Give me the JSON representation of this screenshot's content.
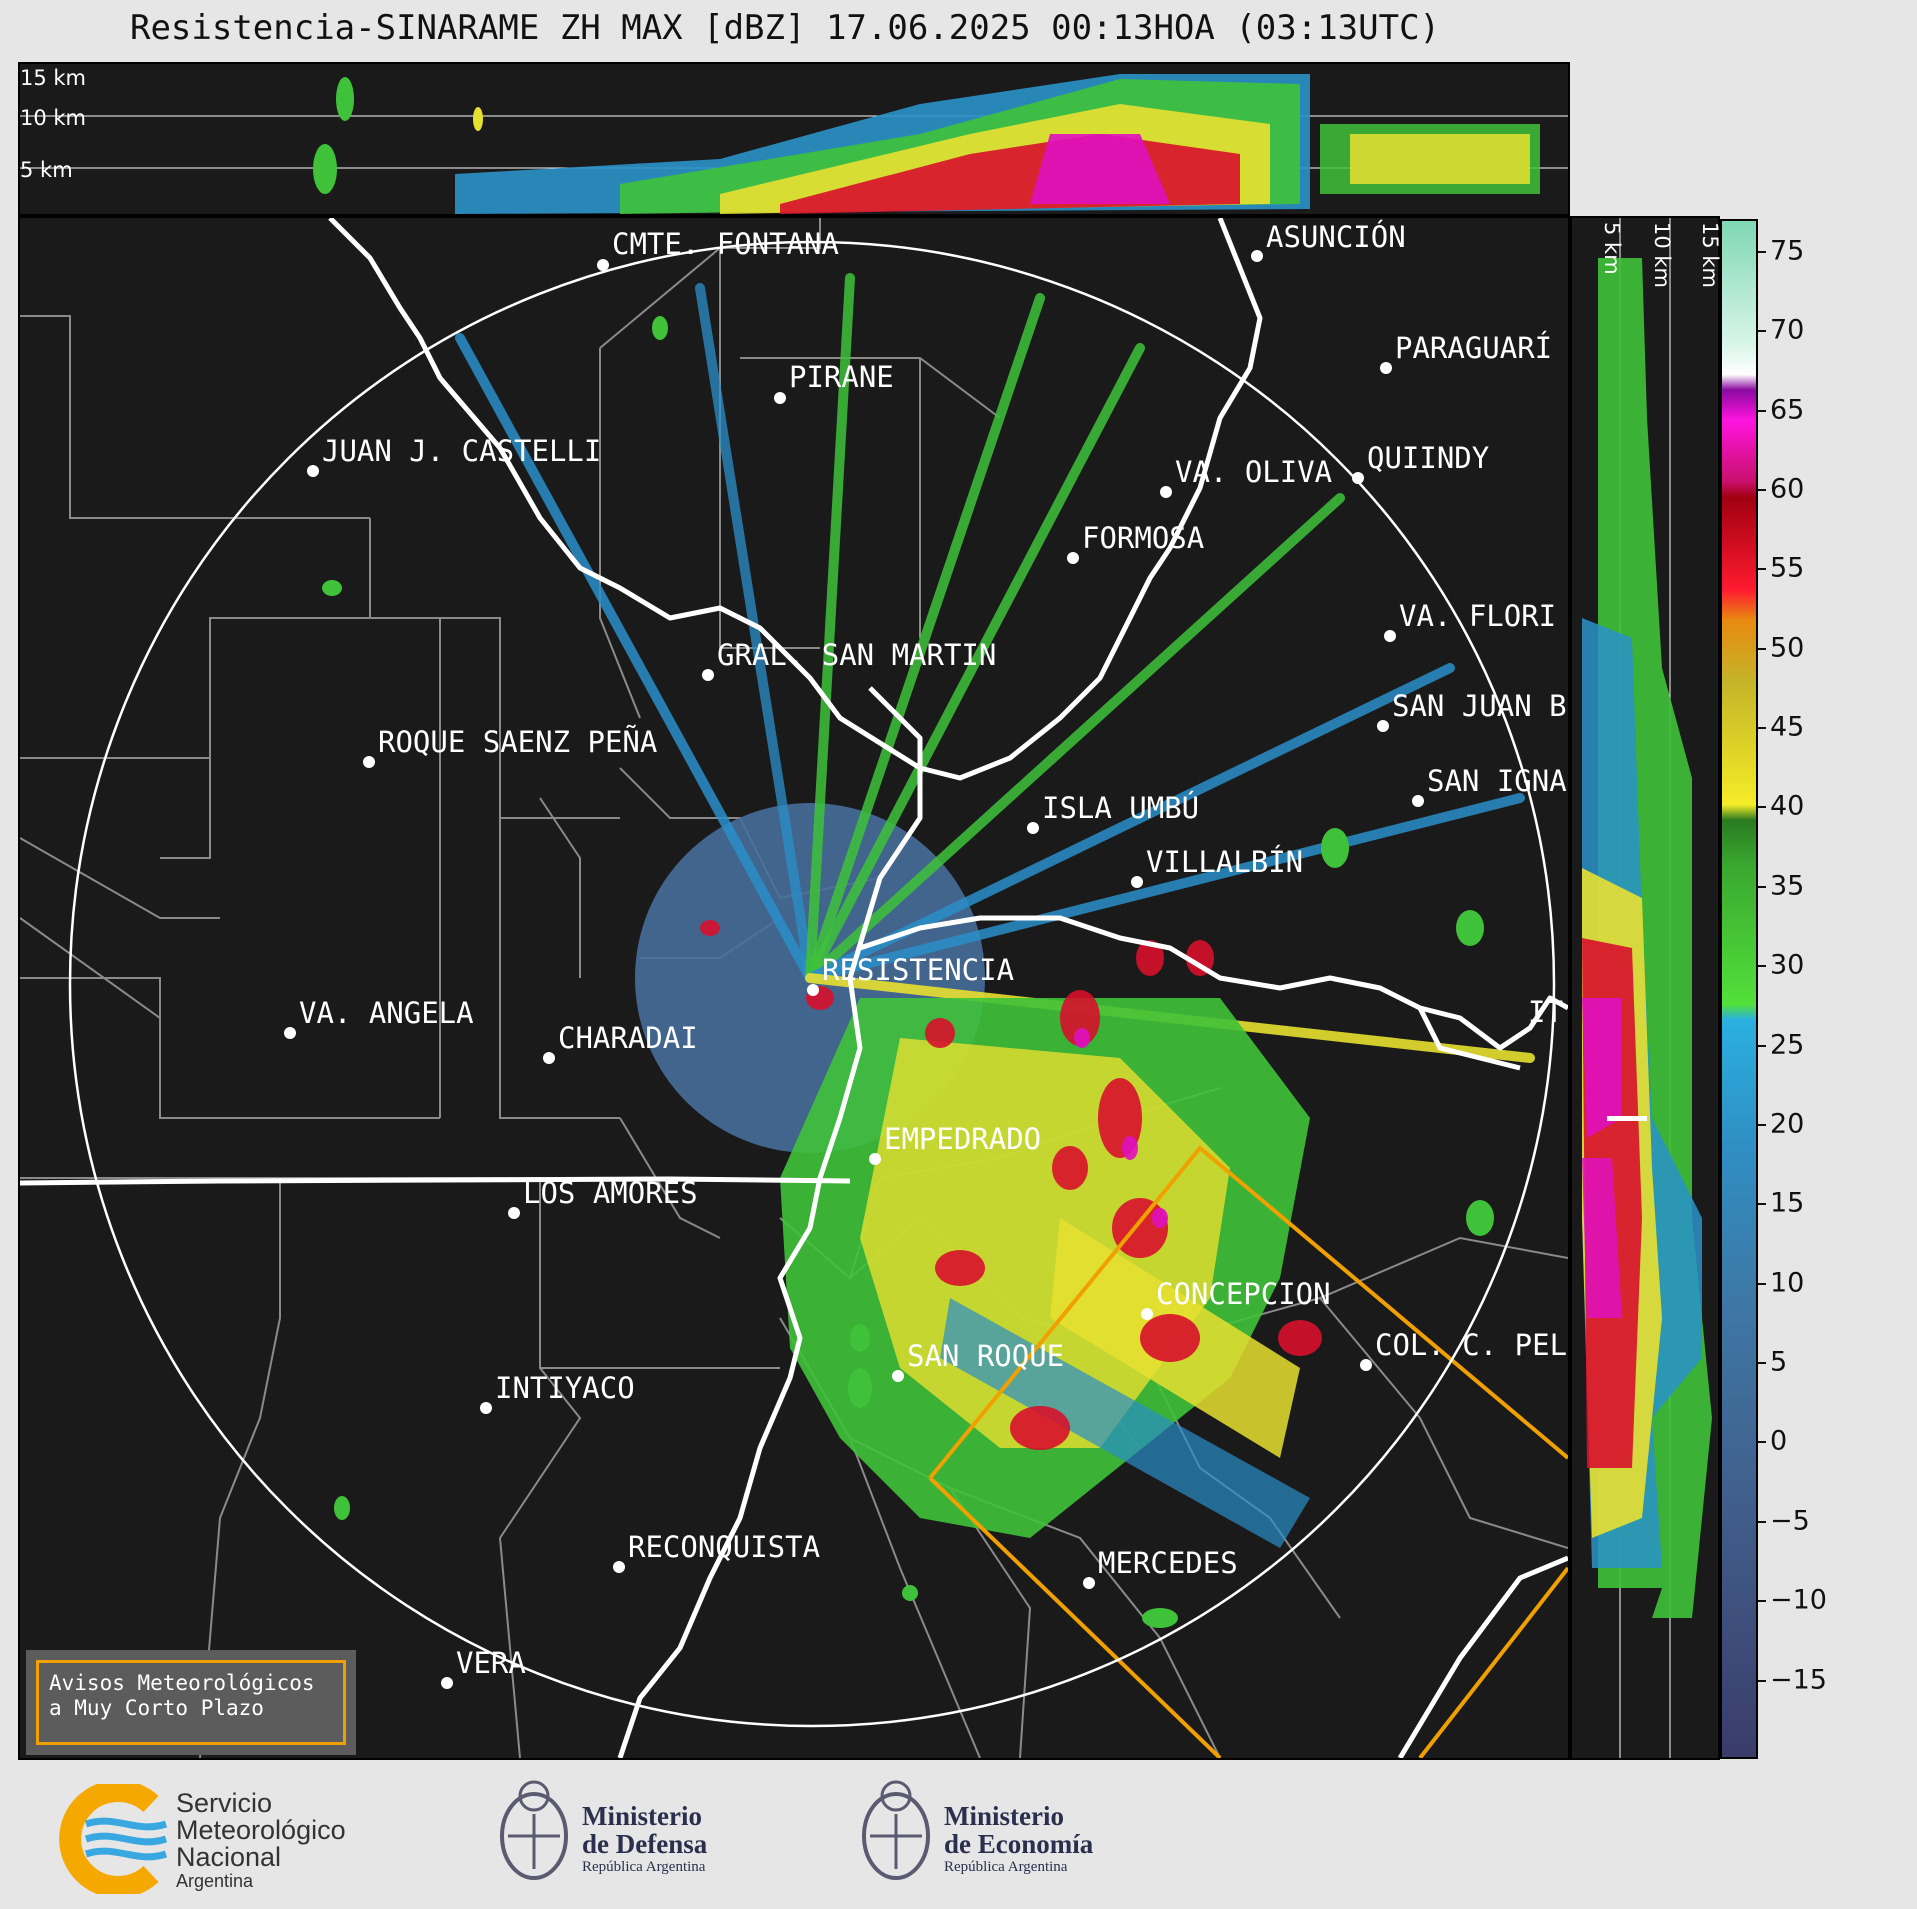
{
  "title": "Resistencia-SINARAME ZH MAX [dBZ] 17.06.2025 00:13HOA (03:13UTC)",
  "top_section": {
    "altitude_labels": [
      "15 km",
      "10 km",
      "5 km"
    ]
  },
  "right_section": {
    "altitude_labels": [
      "5 km",
      "10 km",
      "15 km"
    ]
  },
  "cities": [
    {
      "name": "CMTE. FONTANA"
    },
    {
      "name": "ASUNCIÓN"
    },
    {
      "name": "PIRANE"
    },
    {
      "name": "PARAGUARÍ"
    },
    {
      "name": "JUAN J. CASTELLI"
    },
    {
      "name": "VA. OLIVA"
    },
    {
      "name": "QUIINDY"
    },
    {
      "name": "FORMOSA"
    },
    {
      "name": "VA. FLORI"
    },
    {
      "name": "GRAL. SAN MARTIN"
    },
    {
      "name": "SAN JUAN B"
    },
    {
      "name": "ROQUE SAENZ PEÑA"
    },
    {
      "name": "SAN IGNA"
    },
    {
      "name": "ISLA UMBÚ"
    },
    {
      "name": "VILLALBÍN"
    },
    {
      "name": "RESISTENCIA"
    },
    {
      "name": "IT"
    },
    {
      "name": "VA. ANGELA"
    },
    {
      "name": "CHARADAI"
    },
    {
      "name": "EMPEDRADO"
    },
    {
      "name": "LOS AMORES"
    },
    {
      "name": "CONCEPCION"
    },
    {
      "name": "COL. C. PEL"
    },
    {
      "name": "SAN ROQUE"
    },
    {
      "name": "INTIYACO"
    },
    {
      "name": "MERCEDES"
    },
    {
      "name": "RECONQUISTA"
    },
    {
      "name": "VERA"
    }
  ],
  "colorbar": {
    "ticks": [
      "75",
      "70",
      "65",
      "60",
      "55",
      "50",
      "45",
      "40",
      "35",
      "30",
      "25",
      "20",
      "15",
      "10",
      "5",
      "0",
      "−5",
      "−10",
      "−15"
    ],
    "range": [
      -20,
      77
    ],
    "units": "dBZ"
  },
  "alert_box": {
    "line1": "Avisos Meteorológicos",
    "line2": "a Muy Corto Plazo",
    "border_color": "#f0a000"
  },
  "footer": {
    "smn": {
      "line1": "Servicio",
      "line2": "Meteorológico",
      "line3": "Nacional",
      "line4": "Argentina"
    },
    "defensa": {
      "line1": "Ministerio",
      "line2": "de Defensa",
      "line3": "República Argentina"
    },
    "economia": {
      "line1": "Ministerio",
      "line2": "de Economía",
      "line3": "República Argentina"
    }
  },
  "colors": {
    "background_dark": "#1a1a1a",
    "range_ring": "#ffffff",
    "border_white": "#ffffff",
    "province_lines": "#8a8a8a",
    "warning_polygon": "#f0a000",
    "smn_yellow": "#f5a800",
    "smn_blue": "#3aa8e0"
  }
}
